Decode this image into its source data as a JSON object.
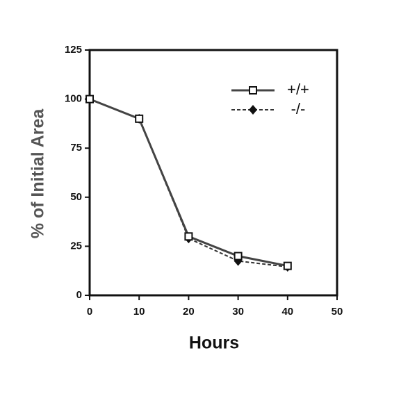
{
  "chart_data": {
    "type": "line",
    "xlabel": "Hours",
    "ylabel": "% of Initial Area",
    "x": [
      0,
      10,
      20,
      30,
      40
    ],
    "series": [
      {
        "name": "+/+",
        "color": "#444444",
        "linestyle": "solid",
        "marker": "square",
        "values": [
          100,
          90,
          30,
          20,
          15
        ]
      },
      {
        "name": "-/-",
        "color": "#333333",
        "linestyle": "dashed",
        "marker": "diamond",
        "values": [
          100,
          90,
          29,
          17.5,
          14.5
        ]
      }
    ],
    "xlim": [
      0,
      50
    ],
    "xticks": [
      0,
      10,
      20,
      30,
      40,
      50
    ],
    "ylim": [
      0,
      125
    ],
    "yticks": [
      0,
      25,
      50,
      75,
      100,
      125
    ],
    "grid": false,
    "legend": "upper right"
  }
}
